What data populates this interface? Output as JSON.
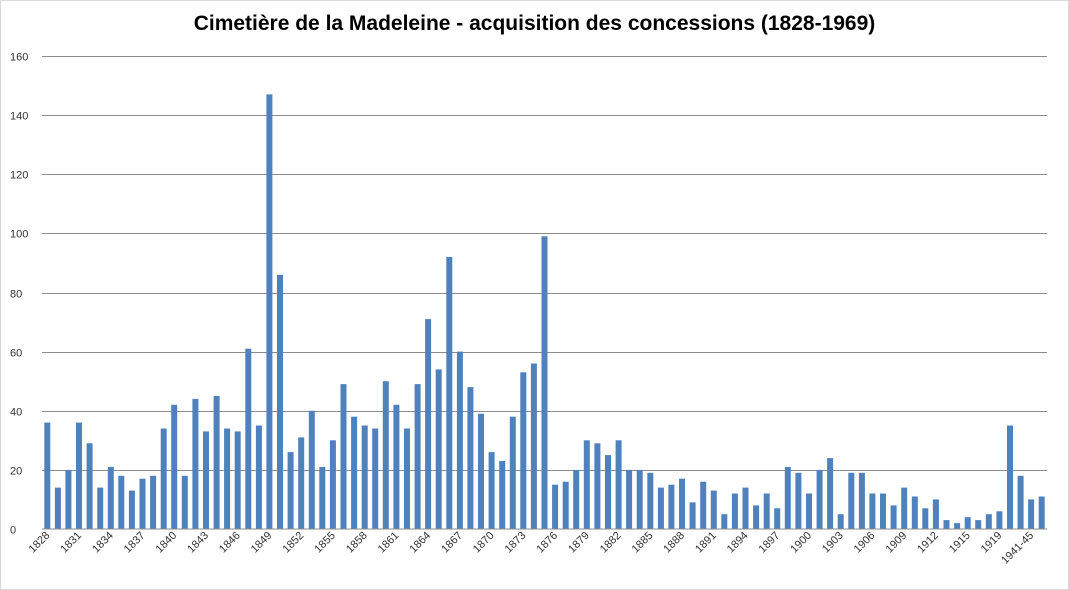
{
  "chart_data": {
    "type": "bar",
    "title": "Cimetière de la Madeleine - acquisition des concessions (1828-1969)",
    "xlabel": "",
    "ylabel": "",
    "ylim": [
      0,
      160
    ],
    "yticks": [
      0,
      20,
      40,
      60,
      80,
      100,
      120,
      140,
      160
    ],
    "grid": true,
    "legend": "none",
    "bar_color": "#4f81bd",
    "gridline_color": "#8c8c8c",
    "x_tick_labels": [
      "1828",
      "1831",
      "1834",
      "1837",
      "1840",
      "1843",
      "1846",
      "1849",
      "1852",
      "1855",
      "1858",
      "1861",
      "1864",
      "1867",
      "1870",
      "1873",
      "1876",
      "1879",
      "1882",
      "1885",
      "1888",
      "1891",
      "1894",
      "1897",
      "1900",
      "1903",
      "1906",
      "1909",
      "1912",
      "1915",
      "1919",
      "1941-45"
    ],
    "x_tick_positions": [
      0,
      3,
      6,
      9,
      12,
      15,
      18,
      21,
      24,
      27,
      30,
      33,
      36,
      39,
      42,
      45,
      48,
      51,
      54,
      57,
      60,
      63,
      66,
      69,
      72,
      75,
      78,
      81,
      84,
      87,
      90,
      93
    ],
    "values": [
      36,
      14,
      20,
      36,
      29,
      14,
      21,
      18,
      13,
      17,
      18,
      34,
      42,
      18,
      44,
      33,
      45,
      34,
      33,
      61,
      35,
      147,
      86,
      26,
      31,
      40,
      21,
      30,
      49,
      38,
      35,
      34,
      50,
      42,
      34,
      49,
      71,
      54,
      92,
      60,
      48,
      39,
      26,
      23,
      38,
      53,
      56,
      99,
      15,
      16,
      20,
      30,
      29,
      25,
      30,
      20,
      20,
      19,
      14,
      15,
      17,
      9,
      16,
      13,
      5,
      12,
      14,
      8,
      12,
      7,
      21,
      19,
      12,
      20,
      24,
      5,
      19,
      19,
      12,
      12,
      8,
      14,
      11,
      7,
      10,
      3,
      2,
      4,
      3,
      5,
      6,
      35,
      18,
      10,
      11
    ]
  }
}
